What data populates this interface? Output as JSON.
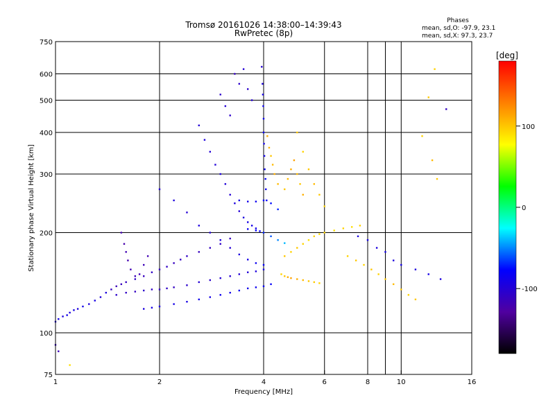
{
  "chart_data": {
    "type": "scatter",
    "title": "Tromsø 20161026 14:38:00–14:39:43",
    "subtitle": "RwPretec (8p)",
    "xlabel": "Frequency [MHz]",
    "ylabel": "Stationary phase Virtual Height [km]",
    "x_scale": "log",
    "y_scale": "log",
    "xlim": [
      1,
      16
    ],
    "ylim": [
      75,
      750
    ],
    "x_ticks": [
      1,
      2,
      4,
      6,
      8,
      10,
      16
    ],
    "x_gridlines": [
      2,
      4,
      6,
      8,
      9,
      10
    ],
    "y_ticks": [
      75,
      100,
      200,
      300,
      400,
      500,
      600,
      750
    ],
    "grid": true,
    "stats": {
      "heading": "Phases",
      "line_o": "mean, sd,O: -97.9, 23.1",
      "line_x": "mean, sd,X:  97.3, 23.7"
    },
    "colorbar": {
      "label": "[deg]",
      "range": [
        -180,
        180
      ],
      "ticks": [
        -100,
        0,
        100
      ],
      "colormap": [
        "#000000",
        "#5000a0",
        "#0000ff",
        "#00ffff",
        "#00ff00",
        "#ffff00",
        "#ff8000",
        "#ff0000"
      ]
    },
    "series": [
      {
        "points": [
          [
            1.0,
            108,
            -95
          ],
          [
            1.02,
            110,
            -90
          ],
          [
            1.05,
            112,
            -95
          ],
          [
            1.08,
            113,
            -90
          ],
          [
            1.1,
            115,
            -95
          ],
          [
            1.13,
            117,
            -92
          ],
          [
            1.16,
            118,
            -95
          ],
          [
            1.2,
            120,
            -90
          ],
          [
            1.25,
            122,
            -95
          ],
          [
            1.3,
            125,
            -92
          ],
          [
            1.35,
            128,
            -98
          ],
          [
            1.4,
            132,
            -95
          ],
          [
            1.45,
            135,
            -110
          ],
          [
            1.5,
            138,
            -115
          ],
          [
            1.55,
            140,
            -112
          ],
          [
            1.6,
            142,
            -110
          ],
          [
            1.7,
            145,
            -108
          ],
          [
            1.8,
            148,
            -112
          ],
          [
            1.9,
            152,
            -108
          ],
          [
            2.0,
            155,
            -112
          ],
          [
            2.1,
            158,
            -108
          ],
          [
            2.2,
            162,
            -112
          ],
          [
            2.3,
            166,
            -110
          ],
          [
            2.4,
            170,
            -108
          ],
          [
            2.6,
            175,
            -112
          ],
          [
            2.8,
            180,
            -110
          ],
          [
            3.0,
            185,
            -108
          ],
          [
            3.2,
            192,
            -112
          ]
        ]
      },
      {
        "points": [
          [
            1.5,
            130,
            -105
          ],
          [
            1.6,
            132,
            -108
          ],
          [
            1.7,
            133,
            -110
          ],
          [
            1.8,
            134,
            -105
          ],
          [
            1.9,
            135,
            -108
          ],
          [
            2.0,
            135,
            -110
          ],
          [
            2.1,
            136,
            -108
          ],
          [
            2.2,
            137,
            -110
          ],
          [
            2.4,
            139,
            -105
          ],
          [
            2.6,
            142,
            -100
          ],
          [
            2.8,
            144,
            -105
          ],
          [
            3.0,
            146,
            -100
          ],
          [
            3.2,
            148,
            -102
          ],
          [
            3.4,
            150,
            -100
          ],
          [
            3.6,
            152,
            -98
          ],
          [
            3.8,
            153,
            -95
          ],
          [
            4.0,
            155,
            -92
          ]
        ]
      },
      {
        "points": [
          [
            1.8,
            118,
            -95
          ],
          [
            1.9,
            119,
            -92
          ],
          [
            2.0,
            120,
            -95
          ],
          [
            2.2,
            122,
            -90
          ],
          [
            2.4,
            124,
            -92
          ],
          [
            2.6,
            126,
            -88
          ],
          [
            2.8,
            128,
            -90
          ],
          [
            3.0,
            130,
            -85
          ],
          [
            3.2,
            132,
            -88
          ],
          [
            3.4,
            134,
            -84
          ],
          [
            3.6,
            136,
            -88
          ],
          [
            3.8,
            137,
            -85
          ],
          [
            4.0,
            138,
            -82
          ],
          [
            4.2,
            140,
            -80
          ]
        ]
      },
      {
        "points": [
          [
            1.55,
            200,
            -120
          ],
          [
            1.58,
            185,
            -122
          ],
          [
            1.6,
            175,
            -118
          ],
          [
            1.62,
            165,
            -120
          ],
          [
            1.65,
            155,
            -118
          ],
          [
            1.7,
            148,
            -115
          ],
          [
            1.75,
            150,
            -118
          ],
          [
            1.8,
            160,
            -115
          ],
          [
            1.85,
            170,
            -118
          ]
        ]
      },
      {
        "points": [
          [
            2.0,
            270,
            -100
          ],
          [
            2.2,
            250,
            -95
          ],
          [
            2.4,
            230,
            -100
          ],
          [
            2.6,
            210,
            -95
          ],
          [
            2.8,
            200,
            -100
          ],
          [
            3.0,
            190,
            -95
          ],
          [
            3.2,
            180,
            -100
          ],
          [
            3.4,
            172,
            -95
          ],
          [
            3.6,
            166,
            -90
          ],
          [
            3.8,
            162,
            -85
          ],
          [
            4.0,
            160,
            -80
          ]
        ]
      },
      {
        "points": [
          [
            2.6,
            420,
            -100
          ],
          [
            2.7,
            380,
            -95
          ],
          [
            2.8,
            350,
            -100
          ],
          [
            2.9,
            320,
            -98
          ],
          [
            3.0,
            300,
            -95
          ],
          [
            3.1,
            280,
            -98
          ],
          [
            3.2,
            260,
            -100
          ],
          [
            3.3,
            245,
            -95
          ],
          [
            3.4,
            232,
            -100
          ],
          [
            3.5,
            222,
            -95
          ],
          [
            3.6,
            215,
            -92
          ],
          [
            3.7,
            210,
            -90
          ],
          [
            3.8,
            206,
            -88
          ],
          [
            3.9,
            202,
            -85
          ]
        ]
      },
      {
        "points": [
          [
            3.0,
            520,
            -105
          ],
          [
            3.1,
            480,
            -100
          ],
          [
            3.2,
            450,
            -105
          ],
          [
            3.3,
            600,
            -110
          ],
          [
            3.4,
            560,
            -105
          ],
          [
            3.5,
            620,
            -100
          ],
          [
            3.6,
            540,
            -105
          ],
          [
            3.7,
            500,
            -100
          ]
        ]
      },
      {
        "points": [
          [
            3.95,
            630,
            -100
          ],
          [
            3.97,
            560,
            -95
          ],
          [
            3.98,
            520,
            -90
          ],
          [
            3.99,
            480,
            -85
          ],
          [
            4.0,
            440,
            -88
          ],
          [
            4.0,
            400,
            -85
          ],
          [
            4.01,
            370,
            -90
          ],
          [
            4.02,
            340,
            -88
          ],
          [
            4.03,
            310,
            -85
          ],
          [
            4.05,
            290,
            -82
          ],
          [
            4.06,
            270,
            -85
          ],
          [
            4.08,
            250,
            -80
          ]
        ]
      },
      {
        "points": [
          [
            3.4,
            250,
            -90
          ],
          [
            3.6,
            248,
            -88
          ],
          [
            3.8,
            248,
            -85
          ],
          [
            4.0,
            250,
            -80
          ],
          [
            4.2,
            245,
            -75
          ],
          [
            4.4,
            235,
            -70
          ]
        ]
      },
      {
        "points": [
          [
            3.6,
            205,
            -85
          ],
          [
            3.8,
            203,
            -80
          ],
          [
            4.0,
            200,
            -70
          ],
          [
            4.2,
            195,
            -60
          ],
          [
            4.4,
            190,
            -50
          ],
          [
            4.6,
            186,
            -40
          ]
        ]
      },
      {
        "points": [
          [
            4.5,
            150,
            95
          ],
          [
            4.6,
            148,
            100
          ],
          [
            4.7,
            147,
            110
          ],
          [
            4.8,
            146,
            115
          ],
          [
            5.0,
            145,
            110
          ],
          [
            5.2,
            144,
            105
          ],
          [
            5.4,
            143,
            100
          ],
          [
            5.6,
            142,
            98
          ],
          [
            5.8,
            141,
            95
          ]
        ]
      },
      {
        "points": [
          [
            4.6,
            170,
            100
          ],
          [
            4.8,
            175,
            95
          ],
          [
            5.0,
            180,
            100
          ],
          [
            5.2,
            185,
            95
          ],
          [
            5.4,
            190,
            90
          ],
          [
            5.6,
            195,
            95
          ],
          [
            5.8,
            198,
            90
          ],
          [
            6.0,
            200,
            95
          ],
          [
            6.4,
            203,
            90
          ],
          [
            6.8,
            206,
            95
          ],
          [
            7.2,
            208,
            90
          ],
          [
            7.6,
            210,
            95
          ]
        ]
      },
      {
        "points": [
          [
            4.6,
            270,
            100
          ],
          [
            4.7,
            290,
            105
          ],
          [
            4.8,
            310,
            110
          ],
          [
            4.9,
            330,
            115
          ],
          [
            5.0,
            300,
            105
          ],
          [
            5.1,
            280,
            100
          ],
          [
            5.2,
            260,
            110
          ]
        ]
      },
      {
        "points": [
          [
            4.1,
            390,
            110
          ],
          [
            4.15,
            360,
            105
          ],
          [
            4.2,
            340,
            100
          ],
          [
            4.25,
            320,
            105
          ],
          [
            4.3,
            300,
            110
          ],
          [
            4.4,
            280,
            105
          ]
        ]
      },
      {
        "points": [
          [
            5.0,
            400,
            100
          ],
          [
            5.2,
            350,
            95
          ],
          [
            5.4,
            310,
            100
          ],
          [
            5.6,
            280,
            105
          ],
          [
            5.8,
            260,
            100
          ],
          [
            6.0,
            240,
            95
          ]
        ]
      },
      {
        "points": [
          [
            7.0,
            170,
            95
          ],
          [
            7.4,
            165,
            100
          ],
          [
            7.8,
            160,
            95
          ],
          [
            8.2,
            155,
            100
          ],
          [
            8.6,
            150,
            95
          ],
          [
            9.0,
            145,
            100
          ],
          [
            9.5,
            140,
            105
          ],
          [
            10.0,
            135,
            100
          ],
          [
            10.5,
            130,
            95
          ],
          [
            11.0,
            126,
            100
          ]
        ]
      },
      {
        "points": [
          [
            12.5,
            620,
            95
          ],
          [
            12.0,
            510,
            100
          ],
          [
            12.3,
            330,
            105
          ],
          [
            12.7,
            290,
            100
          ],
          [
            11.5,
            390,
            95
          ],
          [
            13.5,
            470,
            -110
          ]
        ]
      },
      {
        "points": [
          [
            7.5,
            195,
            -95
          ],
          [
            8.0,
            190,
            -90
          ],
          [
            8.5,
            180,
            -95
          ],
          [
            9.0,
            175,
            -90
          ],
          [
            9.5,
            165,
            -95
          ],
          [
            10.0,
            160,
            -90
          ],
          [
            11.0,
            155,
            -95
          ],
          [
            12.0,
            150,
            -90
          ],
          [
            13.0,
            145,
            -95
          ]
        ]
      },
      {
        "points": [
          [
            1.0,
            92,
            -110
          ],
          [
            1.02,
            88,
            -115
          ],
          [
            1.1,
            80,
            90
          ]
        ]
      }
    ]
  }
}
